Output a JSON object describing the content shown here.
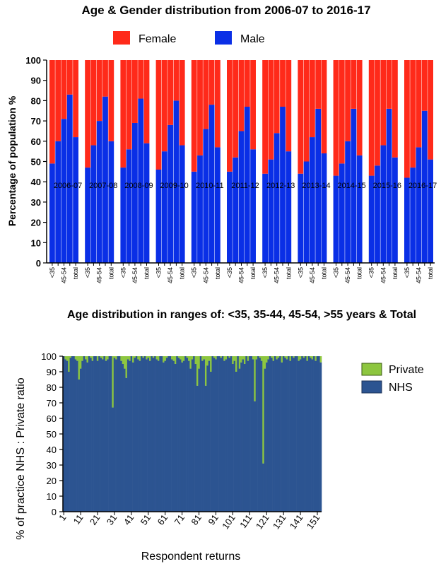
{
  "chart_data": [
    {
      "type": "bar",
      "stacked": true,
      "title": "Age & Gender distribution from 2006-07 to 2016-17",
      "ylabel": "Percentage  of population %",
      "xlabel": "",
      "ylim": [
        0,
        100
      ],
      "yticks": [
        0,
        10,
        20,
        30,
        40,
        50,
        60,
        70,
        80,
        90,
        100
      ],
      "legend": {
        "position": "top",
        "items": [
          {
            "label": "Female",
            "color": "#ff2a1a"
          },
          {
            "label": "Male",
            "color": "#0a2fe6"
          }
        ]
      },
      "colors": {
        "female": "#ff2a1a",
        "male": "#0a2fe6"
      },
      "age_labels": [
        "<35",
        "35-44",
        "45-54",
        ">55",
        "total"
      ],
      "tick_labels_shown": [
        "<35",
        "45-54",
        "total"
      ],
      "groups": [
        "2006-07",
        "2007-08",
        "2008-09",
        "2009-10",
        "2010-11",
        "2011-12",
        "2012-13",
        "2013-14",
        "2014-15",
        "2015-16",
        "2016-17"
      ],
      "series": [
        {
          "name": "Male",
          "values": [
            [
              49,
              60,
              71,
              83,
              62
            ],
            [
              47,
              58,
              70,
              82,
              60
            ],
            [
              47,
              56,
              69,
              81,
              59
            ],
            [
              46,
              55,
              68,
              80,
              58
            ],
            [
              45,
              53,
              66,
              78,
              57
            ],
            [
              45,
              52,
              65,
              77,
              56
            ],
            [
              44,
              51,
              64,
              77,
              55
            ],
            [
              44,
              50,
              62,
              76,
              54
            ],
            [
              43,
              49,
              60,
              76,
              53
            ],
            [
              43,
              48,
              58,
              76,
              52
            ],
            [
              42,
              47,
              57,
              75,
              51
            ]
          ]
        },
        {
          "name": "Female",
          "values_note": "Female = 100 - Male",
          "values": [
            [
              51,
              40,
              29,
              17,
              38
            ],
            [
              53,
              42,
              30,
              18,
              40
            ],
            [
              53,
              44,
              31,
              19,
              41
            ],
            [
              54,
              45,
              32,
              20,
              42
            ],
            [
              55,
              47,
              34,
              22,
              43
            ],
            [
              55,
              48,
              35,
              23,
              44
            ],
            [
              56,
              49,
              36,
              23,
              45
            ],
            [
              56,
              50,
              38,
              24,
              46
            ],
            [
              57,
              51,
              40,
              24,
              47
            ],
            [
              57,
              52,
              42,
              24,
              48
            ],
            [
              58,
              53,
              43,
              25,
              49
            ]
          ]
        }
      ]
    },
    {
      "type": "bar",
      "stacked": true,
      "title": "Age distribution in ranges of: <35, 35-44, 45-54, >55 years & Total",
      "ylabel": "% of practice NHS : Private ratio",
      "xlabel": "Respondent returns",
      "ylim": [
        0,
        100
      ],
      "yticks": [
        0,
        10,
        20,
        30,
        40,
        50,
        60,
        70,
        80,
        90,
        100
      ],
      "xticks": [
        1,
        11,
        21,
        31,
        41,
        51,
        61,
        71,
        81,
        91,
        101,
        111,
        121,
        131,
        141,
        151
      ],
      "legend": {
        "position": "right",
        "items": [
          {
            "label": "Private",
            "color": "#8dc63f"
          },
          {
            "label": "NHS",
            "color": "#2c5491"
          }
        ]
      },
      "colors": {
        "private": "#8dc63f",
        "nhs": "#2c5491"
      },
      "n": 153,
      "series": [
        {
          "name": "NHS",
          "x_start": 1,
          "values": [
            100,
            98,
            97,
            90,
            99,
            100,
            100,
            98,
            97,
            85,
            92,
            97,
            100,
            98,
            96,
            100,
            99,
            97,
            100,
            100,
            97,
            100,
            99,
            98,
            100,
            97,
            98,
            100,
            100,
            67,
            99,
            98,
            100,
            100,
            97,
            95,
            92,
            86,
            98,
            97,
            100,
            96,
            99,
            100,
            98,
            97,
            100,
            99,
            100,
            98,
            99,
            97,
            100,
            99,
            100,
            98,
            97,
            100,
            100,
            96,
            97,
            99,
            100,
            100,
            98,
            97,
            95,
            100,
            99,
            98,
            96,
            97,
            100,
            99,
            97,
            92,
            98,
            100,
            95,
            81,
            92,
            100,
            97,
            98,
            81,
            94,
            97,
            90,
            100,
            99,
            98,
            100,
            100,
            99,
            100,
            97,
            98,
            100,
            99,
            100,
            95,
            97,
            90,
            100,
            92,
            96,
            98,
            95,
            100,
            97,
            100,
            100,
            98,
            71,
            98,
            100,
            99,
            97,
            31,
            92,
            96,
            98,
            100,
            99,
            97,
            100,
            98,
            99,
            100,
            96,
            100,
            99,
            98,
            100,
            97,
            100,
            99,
            100,
            100,
            97,
            98,
            100,
            99,
            100,
            97,
            100,
            99,
            98,
            100,
            97,
            100,
            100,
            96
          ]
        },
        {
          "name": "Private",
          "values_note": "Private = 100 - NHS"
        }
      ]
    }
  ]
}
